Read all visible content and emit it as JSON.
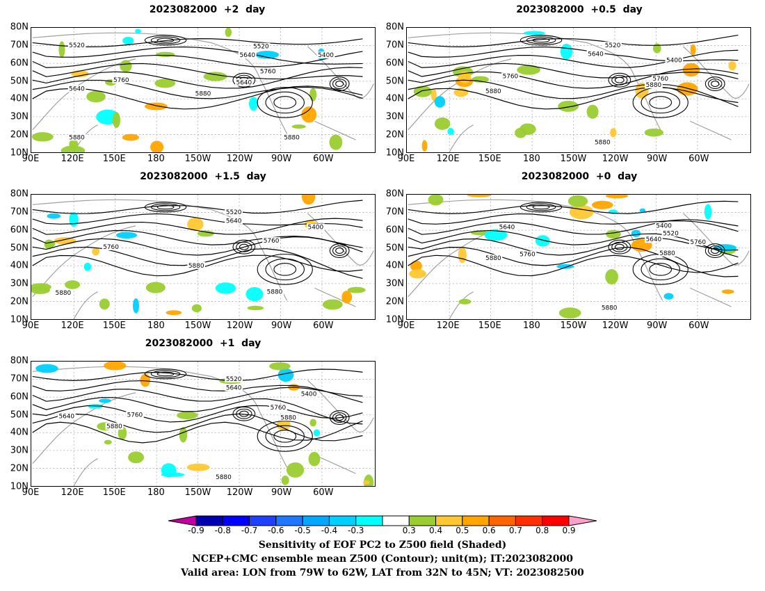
{
  "chart_data": {
    "type": "heatmap",
    "panels": [
      {
        "title": "2023082000  +2  day",
        "contour_labels": [
          "5520",
          "5640",
          "5760",
          "5880",
          "5520",
          "5640",
          "5400",
          "5760",
          "5640",
          "5880",
          "5880"
        ]
      },
      {
        "title": "2023082000  +0.5  day",
        "contour_labels": [
          "5520",
          "5640",
          "5400",
          "5760",
          "5880",
          "5760",
          "5880",
          "5880"
        ]
      },
      {
        "title": "2023082000  +1.5  day",
        "contour_labels": [
          "5520",
          "5640",
          "5400",
          "5760",
          "5760",
          "5880",
          "5880",
          "5880"
        ]
      },
      {
        "title": "2023082000  +0  day",
        "contour_labels": [
          "5640",
          "5400",
          "5520",
          "5640",
          "5760",
          "5760",
          "5880",
          "5880",
          "5880"
        ]
      },
      {
        "title": "2023082000  +1  day",
        "contour_labels": [
          "5520",
          "5640",
          "5400",
          "5760",
          "5760",
          "5880",
          "5880",
          "5640",
          "5880"
        ]
      }
    ],
    "lat_ticks": [
      "10N",
      "20N",
      "30N",
      "40N",
      "50N",
      "60N",
      "70N",
      "80N"
    ],
    "lon_ticks": [
      "90E",
      "120E",
      "150E",
      "180",
      "150W",
      "120W",
      "90W",
      "60W"
    ],
    "ylim": [
      10,
      80
    ],
    "colorbar": {
      "levels": [
        "-0.9",
        "-0.8",
        "-0.7",
        "-0.6",
        "-0.5",
        "-0.4",
        "-0.3",
        "0.3",
        "0.4",
        "0.5",
        "0.6",
        "0.7",
        "0.8",
        "0.9"
      ],
      "colors": [
        "#c000a0",
        "#0000b0",
        "#0000ff",
        "#1e40ff",
        "#1e78ff",
        "#00a8ff",
        "#00d0ff",
        "#00ffff",
        "#ffffff",
        "#9acd32",
        "#ffc832",
        "#ffa500",
        "#ff6400",
        "#ff3000",
        "#ff0000",
        "#ffa0c8"
      ]
    },
    "captions": [
      "Sensitivity of EOF PC2 to Z500 field (Shaded)",
      "NCEP+CMC ensemble mean Z500 (Contour); unit(m); IT:2023082000",
      "Valid area: LON from 79W to 62W, LAT from 32N to 45N; VT: 2023082500"
    ]
  }
}
